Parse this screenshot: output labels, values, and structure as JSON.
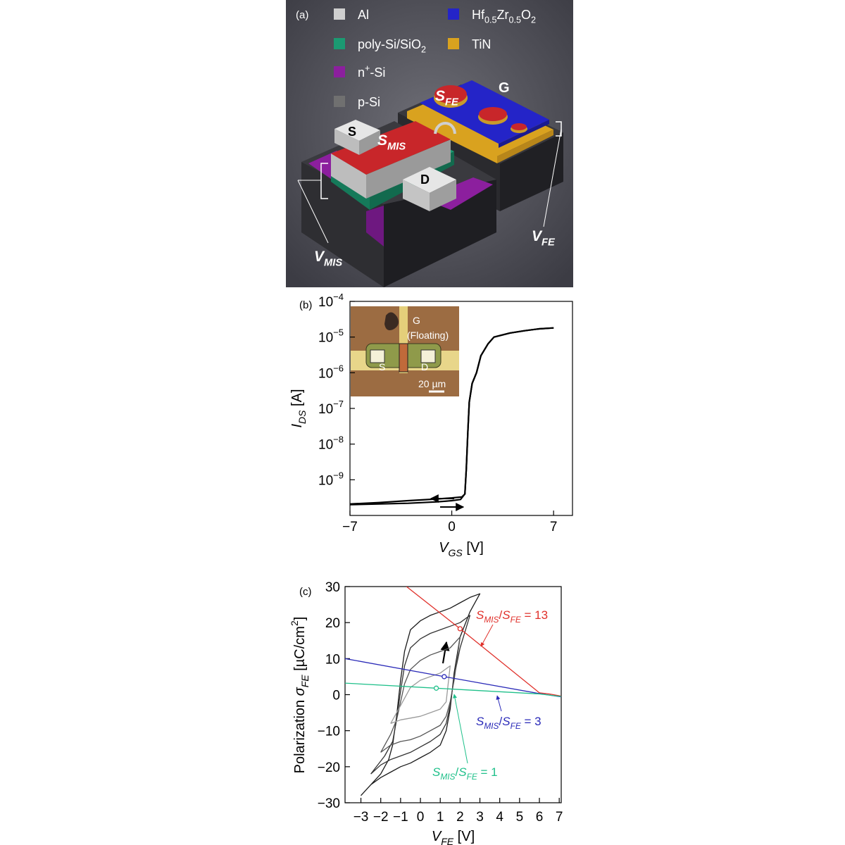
{
  "panel_a": {
    "label": "(a)",
    "legend": [
      {
        "color": "#cfcfcf",
        "label": [
          {
            "t": "Al"
          }
        ]
      },
      {
        "color": "#1b9a72",
        "label": [
          {
            "t": "poly-Si/SiO"
          },
          {
            "t": "2",
            "s": "sub"
          }
        ]
      },
      {
        "color": "#8c1f9e",
        "label": [
          {
            "t": "n"
          },
          {
            "t": "+",
            "s": "sup"
          },
          {
            "t": "-Si"
          }
        ]
      },
      {
        "color": "#707070",
        "label": [
          {
            "t": "p-Si"
          }
        ]
      },
      {
        "color": "#2424c8",
        "label": [
          {
            "t": "Hf"
          },
          {
            "t": "0.5",
            "s": "sub"
          },
          {
            "t": "Zr"
          },
          {
            "t": "0.5",
            "s": "sub"
          },
          {
            "t": "O"
          },
          {
            "t": "2",
            "s": "sub"
          }
        ]
      },
      {
        "color": "#d9a21f",
        "label": [
          {
            "t": "TiN"
          }
        ]
      }
    ],
    "labels": [
      [
        {
          "t": "S",
          "it": true
        },
        {
          "t": "FE",
          "s": "sub",
          "it": true
        }
      ],
      [
        {
          "t": "G"
        }
      ],
      [
        {
          "t": "S"
        }
      ],
      [
        {
          "t": "S",
          "it": true
        },
        {
          "t": "MIS",
          "s": "sub",
          "it": true
        }
      ],
      [
        {
          "t": "D"
        }
      ],
      [
        {
          "t": "V",
          "it": true
        },
        {
          "t": "MIS",
          "s": "sub",
          "it": true
        }
      ],
      [
        {
          "t": "V",
          "it": true
        },
        {
          "t": "FE",
          "s": "sub",
          "it": true
        }
      ]
    ]
  },
  "chart_data": [
    {
      "type": "line",
      "panel_label": "(b)",
      "log_y": true,
      "x_label": [
        {
          "t": "V",
          "it": true
        },
        {
          "t": "GS",
          "s": "sub",
          "it": true
        },
        {
          "t": " [V]"
        }
      ],
      "y_label": [
        {
          "t": "I",
          "it": true
        },
        {
          "t": "DS",
          "s": "sub",
          "it": true
        },
        {
          "t": " [A]"
        }
      ],
      "xlim": [
        -7,
        8.3
      ],
      "ylim": [
        1e-10,
        0.0001
      ],
      "xticks": [
        {
          "value": -7,
          "label": "−7"
        },
        0,
        7
      ],
      "yticks": [
        {
          "value": 0.0001,
          "label": [
            "10",
            "−4"
          ]
        },
        {
          "value": 1e-05,
          "label": [
            "10",
            "−5"
          ]
        },
        {
          "value": 1e-06,
          "label": [
            "10",
            "−6"
          ]
        },
        {
          "value": 1e-07,
          "label": [
            "10",
            "−7"
          ]
        },
        {
          "value": 1e-08,
          "label": [
            "10",
            "−8"
          ]
        },
        {
          "value": 1e-09,
          "label": [
            "10",
            "−9"
          ]
        }
      ],
      "inset_labels": [
        "G",
        "(Floating)",
        "S",
        "D",
        "20 µm"
      ],
      "series": [
        {
          "color": "#000000",
          "style": "line",
          "x": [
            -7,
            -5,
            -3,
            -1,
            0,
            0.6,
            0.9,
            1.0,
            1.1,
            1.2,
            1.4,
            1.7,
            2,
            2.5,
            2.9,
            4,
            5,
            6,
            7
          ],
          "values": [
            2e-10,
            2.1e-10,
            2.2e-10,
            2.4e-10,
            2.6e-10,
            2.8e-10,
            4e-10,
            2e-09,
            2e-08,
            1.5e-07,
            5e-07,
            1e-06,
            3e-06,
            6.5e-06,
            1e-05,
            1.3e-05,
            1.5e-05,
            1.7e-05,
            1.8e-05
          ]
        },
        {
          "color": "#000000",
          "style": "line",
          "x": [
            7,
            6,
            5,
            4,
            2.9,
            2.5,
            2,
            1.7,
            1.4,
            1.2,
            1.1,
            1.0,
            0.9,
            0.7,
            0,
            -1,
            -3,
            -5,
            -7
          ],
          "values": [
            1.8e-05,
            1.7e-05,
            1.5e-05,
            1.3e-05,
            1e-05,
            6.5e-06,
            3e-06,
            1e-06,
            5e-07,
            1.5e-07,
            2e-08,
            2e-09,
            4e-10,
            3.3e-10,
            3.1e-10,
            2.9e-10,
            2.6e-10,
            2.3e-10,
            2.1e-10
          ]
        }
      ]
    },
    {
      "type": "line",
      "panel_label": "(c)",
      "log_y": false,
      "x_label": [
        {
          "t": "V",
          "it": true
        },
        {
          "t": "FE",
          "s": "sub",
          "it": true
        },
        {
          "t": " [V]"
        }
      ],
      "y_label": [
        {
          "t": "Polarization "
        },
        {
          "t": "σ",
          "it": true
        },
        {
          "t": "FE",
          "s": "sub",
          "it": true
        },
        {
          "t": " [µC/cm"
        },
        {
          "t": "2",
          "s": "sup"
        },
        {
          "t": "]"
        }
      ],
      "xlim": [
        -3.8,
        7.1
      ],
      "ylim": [
        -30,
        30
      ],
      "xticks": [
        {
          "value": -3,
          "label": "−3"
        },
        {
          "value": -2,
          "label": "−2"
        },
        {
          "value": -1,
          "label": "−1"
        },
        0,
        1,
        2,
        3,
        4,
        5,
        6,
        7
      ],
      "yticks": [
        {
          "value": -30,
          "label": "−30"
        },
        {
          "value": -20,
          "label": "−20"
        },
        {
          "value": -10,
          "label": "−10"
        },
        0,
        10,
        20,
        30
      ],
      "annotations": [
        {
          "color": "#e0302a",
          "text": [
            {
              "t": "S",
              "it": true
            },
            {
              "t": "MIS",
              "s": "sub",
              "it": true
            },
            {
              "t": "/"
            },
            {
              "t": "S",
              "it": true
            },
            {
              "t": "FE",
              "s": "sub",
              "it": true
            },
            {
              "t": " = 13"
            }
          ]
        },
        {
          "color": "#2a2ab8",
          "text": [
            {
              "t": "S",
              "it": true
            },
            {
              "t": "MIS",
              "s": "sub",
              "it": true
            },
            {
              "t": "/"
            },
            {
              "t": "S",
              "it": true
            },
            {
              "t": "FE",
              "s": "sub",
              "it": true
            },
            {
              "t": " = 3"
            }
          ]
        },
        {
          "color": "#1fc08a",
          "text": [
            {
              "t": "S",
              "it": true
            },
            {
              "t": "MIS",
              "s": "sub",
              "it": true
            },
            {
              "t": "/"
            },
            {
              "t": "S",
              "it": true
            },
            {
              "t": "FE",
              "s": "sub",
              "it": true
            },
            {
              "t": " = 1"
            }
          ]
        }
      ],
      "series": [
        {
          "color": "#1a1a1a",
          "style": "line",
          "x": [
            -3,
            -2.5,
            -2,
            -1.5,
            -1,
            -0.5,
            0,
            0.5,
            1,
            1.3,
            1.5,
            1.7,
            2,
            2.5,
            3,
            2.5,
            2,
            1.5,
            1,
            0.5,
            0,
            -0.5,
            -0.8,
            -1,
            -1.2,
            -1.4,
            -1.6,
            -2,
            -2.5,
            -3
          ],
          "values": [
            -28,
            -25,
            -23,
            -21.5,
            -20,
            -19,
            -17.5,
            -16,
            -14,
            -10,
            -4,
            6,
            16,
            23,
            28,
            27,
            25.5,
            24,
            23,
            22,
            20.5,
            18,
            12,
            4,
            -6,
            -14,
            -18,
            -22,
            -25,
            -28
          ]
        },
        {
          "color": "#333333",
          "style": "line",
          "x": [
            -2.5,
            -2,
            -1.5,
            -1,
            -0.5,
            0,
            0.5,
            1,
            1.3,
            1.5,
            1.7,
            2,
            2.5,
            2,
            1.5,
            1,
            0.5,
            0,
            -0.5,
            -0.8,
            -1,
            -1.2,
            -1.4,
            -1.8,
            -2.5
          ],
          "values": [
            -22,
            -19.5,
            -18,
            -17,
            -16,
            -14.5,
            -13,
            -11,
            -8,
            -3,
            5,
            13,
            22,
            20,
            19,
            18,
            17,
            15.5,
            13,
            8,
            1,
            -7,
            -13,
            -17,
            -22
          ]
        },
        {
          "color": "#555555",
          "style": "line",
          "x": [
            -2,
            -1.5,
            -1,
            -0.5,
            0,
            0.5,
            1,
            1.3,
            1.5,
            1.7,
            2,
            1.5,
            1,
            0.5,
            0,
            -0.5,
            -0.8,
            -1,
            -1.2,
            -1.5,
            -2
          ],
          "values": [
            -16,
            -14,
            -13,
            -12.5,
            -11.5,
            -10,
            -8.5,
            -6,
            -2,
            4,
            16,
            13,
            12,
            11,
            9.5,
            7,
            3,
            -2,
            -7,
            -11,
            -16
          ]
        },
        {
          "color": "#9a9a9a",
          "style": "line",
          "x": [
            -1.5,
            -1,
            -0.5,
            0,
            0.5,
            1,
            1.3,
            1.5,
            1,
            0.5,
            0,
            -0.5,
            -1,
            -1.5
          ],
          "values": [
            -8,
            -7,
            -6.5,
            -6,
            -5,
            -4,
            -2,
            8,
            6,
            5,
            4,
            2,
            -3,
            -8
          ]
        },
        {
          "color": "#e0302a",
          "style": "line",
          "x": [
            -0.7,
            2,
            6,
            6.5,
            7.1
          ],
          "values": [
            30,
            18.3,
            0.5,
            0.2,
            -0.4
          ]
        },
        {
          "color": "#2a2ab8",
          "style": "line",
          "x": [
            -3.8,
            1.2,
            6,
            7.1
          ],
          "values": [
            10,
            5,
            0.3,
            -0.6
          ]
        },
        {
          "color": "#1fc08a",
          "style": "line",
          "x": [
            -3.8,
            0.8,
            6,
            7.1
          ],
          "values": [
            3.2,
            1.8,
            0.2,
            -0.5
          ]
        },
        {
          "color": "#e0302a",
          "style": "open-circle",
          "x": [
            2
          ],
          "values": [
            18.3
          ]
        },
        {
          "color": "#2a2ab8",
          "style": "open-circle",
          "x": [
            1.2
          ],
          "values": [
            5
          ]
        },
        {
          "color": "#1fc08a",
          "style": "open-circle",
          "x": [
            0.8
          ],
          "values": [
            1.8
          ]
        }
      ]
    }
  ]
}
